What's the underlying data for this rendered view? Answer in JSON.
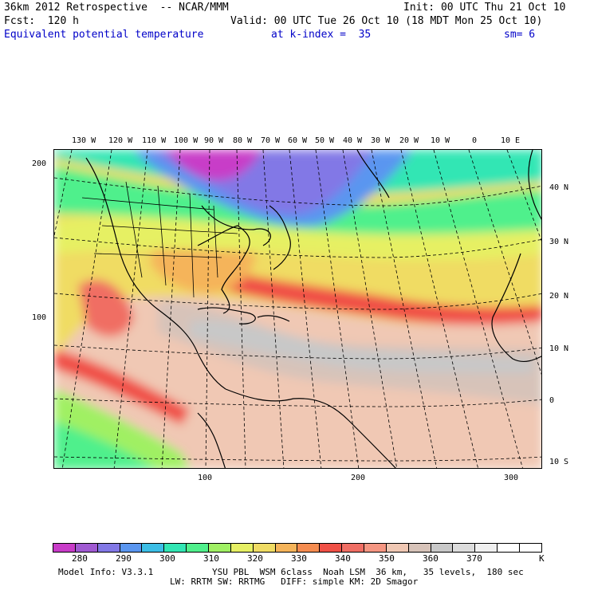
{
  "header": {
    "line1_left": "36km 2012 Retrospective  -- NCAR/MMM",
    "line1_right": "Init: 00 UTC Thu 21 Oct 10",
    "line2_left": "Fcst:  120 h",
    "line2_right": "Valid: 00 UTC Tue 26 Oct 10 (18 MDT Mon 25 Oct 10)",
    "field": "Equivalent potential temperature",
    "level": "at k-index =  35",
    "smooth": "sm= 6"
  },
  "map": {
    "lon_labels": [
      "130 W",
      "120 W",
      "110 W",
      "100 W",
      "90 W",
      "80 W",
      "70 W",
      "60 W",
      "50 W",
      "40 W",
      "30 W",
      "20 W",
      "10 W",
      "0",
      "10 E"
    ],
    "lat_labels": [
      "40 N",
      "30 N",
      "20 N",
      "10 N",
      "0",
      "10 S"
    ],
    "grid_y_labels": [
      "200",
      "100"
    ],
    "grid_x_labels": [
      "100",
      "200",
      "300"
    ]
  },
  "colorbar": {
    "colors": [
      "#c83cc8",
      "#a05ad2",
      "#8278e6",
      "#5a96f0",
      "#3cbee6",
      "#32e6b4",
      "#50f08c",
      "#a0f064",
      "#e6f064",
      "#f0dc64",
      "#f5b45a",
      "#f58c50",
      "#f05046",
      "#f06e64",
      "#f59682",
      "#f0c8b4",
      "#d7c3b9",
      "#c8c8c8",
      "#dcdcdc",
      "#f0f0f0",
      "#ffffff",
      "#ffffff"
    ],
    "labels": [
      "280",
      "290",
      "300",
      "310",
      "320",
      "330",
      "340",
      "350",
      "360",
      "370"
    ],
    "unit": "K"
  },
  "footer": {
    "line1_left": "Model Info: V3.3.1",
    "line1_right": "YSU PBL  WSM 6class  Noah LSM  36 km,   35 levels,  180 sec",
    "line2": "LW: RRTM SW: RRTMG   DIFF: simple KM: 2D Smagor"
  }
}
